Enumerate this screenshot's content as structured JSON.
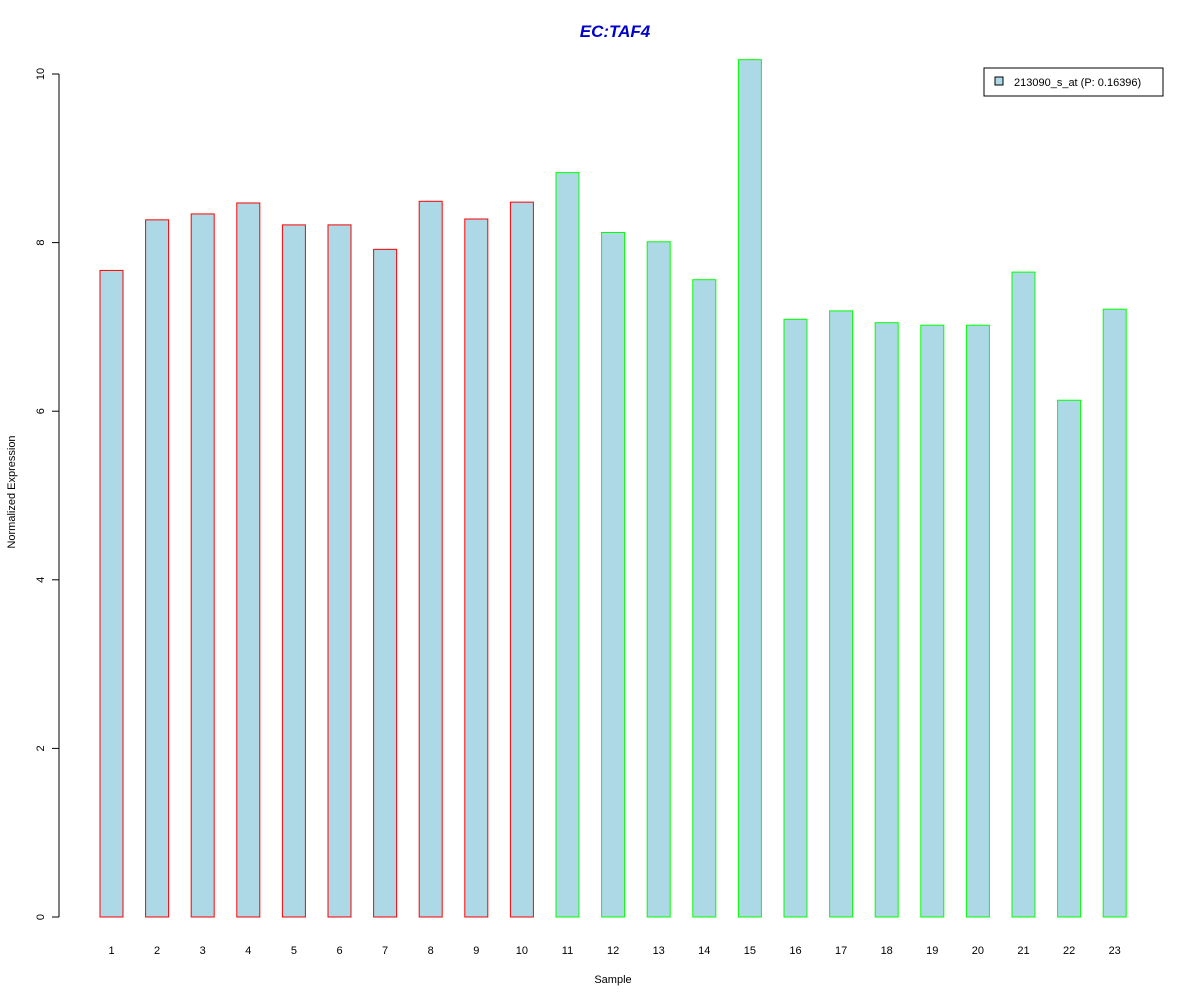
{
  "chart_data": {
    "type": "bar",
    "title": "EC:TAF4",
    "xlabel": "Sample",
    "ylabel": "Normalized Expression",
    "ylim": [
      0,
      10
    ],
    "yticks": [
      "0",
      "2",
      "4",
      "6",
      "8",
      "10"
    ],
    "categories": [
      "1",
      "2",
      "3",
      "4",
      "5",
      "6",
      "7",
      "8",
      "9",
      "10",
      "11",
      "12",
      "13",
      "14",
      "15",
      "16",
      "17",
      "18",
      "19",
      "20",
      "21",
      "22",
      "23"
    ],
    "series": [
      {
        "name": "213090_s_at (P: 0.16396)",
        "values": [
          7.67,
          8.27,
          8.34,
          8.47,
          8.21,
          8.21,
          7.92,
          8.49,
          8.28,
          8.48,
          8.83,
          8.12,
          8.01,
          7.56,
          10.17,
          7.09,
          7.19,
          7.05,
          7.02,
          7.02,
          7.65,
          6.13,
          7.21
        ]
      }
    ],
    "groups": [
      "red",
      "red",
      "red",
      "red",
      "red",
      "red",
      "red",
      "red",
      "red",
      "red",
      "green",
      "green",
      "green",
      "green",
      "green",
      "green",
      "green",
      "green",
      "green",
      "green",
      "green",
      "green",
      "green"
    ],
    "legend_position": "top-right",
    "grid": false,
    "colors": {
      "title": "#0000CC",
      "fill": "#ADD8E6",
      "red": "#FF0000",
      "green": "#00FF00",
      "axis": "#000000"
    }
  }
}
